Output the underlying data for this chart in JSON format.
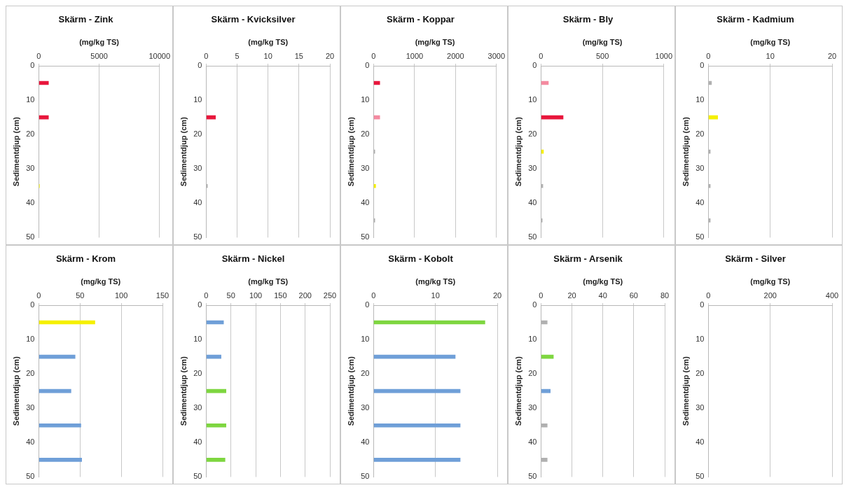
{
  "chart_data": [
    {
      "type": "bar",
      "orientation": "horizontal",
      "title": "Skärm - Zink",
      "xlabel": "(mg/kg TS)",
      "ylabel": "Sedimentdjup (cm)",
      "x": [
        5,
        15,
        35
      ],
      "values": [
        800,
        800,
        50
      ],
      "colors": [
        "#e8163c",
        "#e8163c",
        "#f5f000"
      ],
      "xlim": [
        0,
        10000
      ],
      "xticks": [
        0,
        5000,
        10000
      ],
      "ylim": [
        50,
        0
      ],
      "yticks": [
        0,
        10,
        20,
        30,
        40,
        50
      ],
      "grid": "x"
    },
    {
      "type": "bar",
      "orientation": "horizontal",
      "title": "Skärm - Kvicksilver",
      "xlabel": "(mg/kg TS)",
      "ylabel": "Sedimentdjup (cm)",
      "x": [
        15,
        35
      ],
      "values": [
        1.5,
        0.2
      ],
      "colors": [
        "#e8163c",
        "#b0b0b0"
      ],
      "xlim": [
        0,
        20
      ],
      "xticks": [
        0,
        5,
        10,
        15,
        20
      ],
      "ylim": [
        50,
        0
      ],
      "yticks": [
        0,
        10,
        20,
        30,
        40,
        50
      ],
      "grid": "x"
    },
    {
      "type": "bar",
      "orientation": "horizontal",
      "title": "Skärm - Koppar",
      "xlabel": "(mg/kg TS)",
      "ylabel": "Sedimentdjup (cm)",
      "x": [
        5,
        15,
        25,
        35,
        45
      ],
      "values": [
        150,
        150,
        30,
        50,
        30
      ],
      "colors": [
        "#e8163c",
        "#f48aa0",
        "#b0b0b0",
        "#f5f000",
        "#b0b0b0"
      ],
      "xlim": [
        0,
        3000
      ],
      "xticks": [
        0,
        1000,
        2000,
        3000
      ],
      "ylim": [
        50,
        0
      ],
      "yticks": [
        0,
        10,
        20,
        30,
        40,
        50
      ],
      "grid": "x"
    },
    {
      "type": "bar",
      "orientation": "horizontal",
      "title": "Skärm - Bly",
      "xlabel": "(mg/kg TS)",
      "ylabel": "Sedimentdjup (cm)",
      "x": [
        5,
        15,
        25,
        35,
        45
      ],
      "values": [
        60,
        180,
        20,
        15,
        10
      ],
      "colors": [
        "#f48aa0",
        "#e8163c",
        "#f5f000",
        "#b0b0b0",
        "#b0b0b0"
      ],
      "xlim": [
        0,
        1000
      ],
      "xticks": [
        0,
        500,
        1000
      ],
      "ylim": [
        50,
        0
      ],
      "yticks": [
        0,
        10,
        20,
        30,
        40,
        50
      ],
      "grid": "x"
    },
    {
      "type": "bar",
      "orientation": "horizontal",
      "title": "Skärm - Kadmium",
      "xlabel": "(mg/kg TS)",
      "ylabel": "Sedimentdjup (cm)",
      "x": [
        5,
        15,
        25,
        35,
        45
      ],
      "values": [
        0.5,
        1.5,
        0.3,
        0.3,
        0.3
      ],
      "colors": [
        "#b0b0b0",
        "#f5f000",
        "#b0b0b0",
        "#b0b0b0",
        "#b0b0b0"
      ],
      "xlim": [
        0,
        20
      ],
      "xticks": [
        0,
        10,
        20
      ],
      "ylim": [
        50,
        0
      ],
      "yticks": [
        0,
        10,
        20,
        30,
        40,
        50
      ],
      "grid": "x"
    },
    {
      "type": "bar",
      "orientation": "horizontal",
      "title": "Skärm - Krom",
      "xlabel": "(mg/kg TS)",
      "ylabel": "Sedimentdjup (cm)",
      "x": [
        5,
        15,
        25,
        35,
        45
      ],
      "values": [
        68,
        44,
        39,
        51,
        52
      ],
      "colors": [
        "#f5f000",
        "#6f9fd8",
        "#6f9fd8",
        "#6f9fd8",
        "#6f9fd8"
      ],
      "xlim": [
        0,
        150
      ],
      "xticks": [
        0,
        50,
        100,
        150
      ],
      "ylim": [
        50,
        0
      ],
      "yticks": [
        0,
        10,
        20,
        30,
        40,
        50
      ],
      "grid": "x"
    },
    {
      "type": "bar",
      "orientation": "horizontal",
      "title": "Skärm - Nickel",
      "xlabel": "(mg/kg TS)",
      "ylabel": "Sedimentdjup (cm)",
      "x": [
        5,
        15,
        25,
        35,
        45
      ],
      "values": [
        35,
        30,
        40,
        40,
        38
      ],
      "colors": [
        "#6f9fd8",
        "#6f9fd8",
        "#7ed640",
        "#7ed640",
        "#7ed640"
      ],
      "xlim": [
        0,
        250
      ],
      "xticks": [
        0,
        50,
        100,
        150,
        200,
        250
      ],
      "ylim": [
        50,
        0
      ],
      "yticks": [
        0,
        10,
        20,
        30,
        40,
        50
      ],
      "grid": "x"
    },
    {
      "type": "bar",
      "orientation": "horizontal",
      "title": "Skärm - Kobolt",
      "xlabel": "(mg/kg TS)",
      "ylabel": "Sedimentdjup (cm)",
      "x": [
        5,
        15,
        25,
        35,
        45
      ],
      "values": [
        18,
        13.2,
        14,
        14,
        14
      ],
      "colors": [
        "#7ed640",
        "#6f9fd8",
        "#6f9fd8",
        "#6f9fd8",
        "#6f9fd8"
      ],
      "xlim": [
        0,
        20
      ],
      "xticks": [
        0,
        10,
        20
      ],
      "ylim": [
        50,
        0
      ],
      "yticks": [
        0,
        10,
        20,
        30,
        40,
        50
      ],
      "grid": "x"
    },
    {
      "type": "bar",
      "orientation": "horizontal",
      "title": "Skärm - Arsenik",
      "xlabel": "(mg/kg TS)",
      "ylabel": "Sedimentdjup (cm)",
      "x": [
        5,
        15,
        25,
        35,
        45
      ],
      "values": [
        4,
        8,
        6,
        4,
        4
      ],
      "colors": [
        "#b0b0b0",
        "#7ed640",
        "#6f9fd8",
        "#b0b0b0",
        "#b0b0b0"
      ],
      "xlim": [
        0,
        80
      ],
      "xticks": [
        0,
        20,
        40,
        60,
        80
      ],
      "ylim": [
        50,
        0
      ],
      "yticks": [
        0,
        10,
        20,
        30,
        40,
        50
      ],
      "grid": "x"
    },
    {
      "type": "bar",
      "orientation": "horizontal",
      "title": "Skärm - Silver",
      "xlabel": "(mg/kg TS)",
      "ylabel": "Sedimentdjup (cm)",
      "xlim": [
        0,
        400
      ],
      "xticks": [
        0,
        200,
        400
      ],
      "ylim": [
        50,
        0
      ],
      "yticks": [
        0,
        10,
        20,
        30,
        40,
        50
      ],
      "grid": "x"
    }
  ]
}
